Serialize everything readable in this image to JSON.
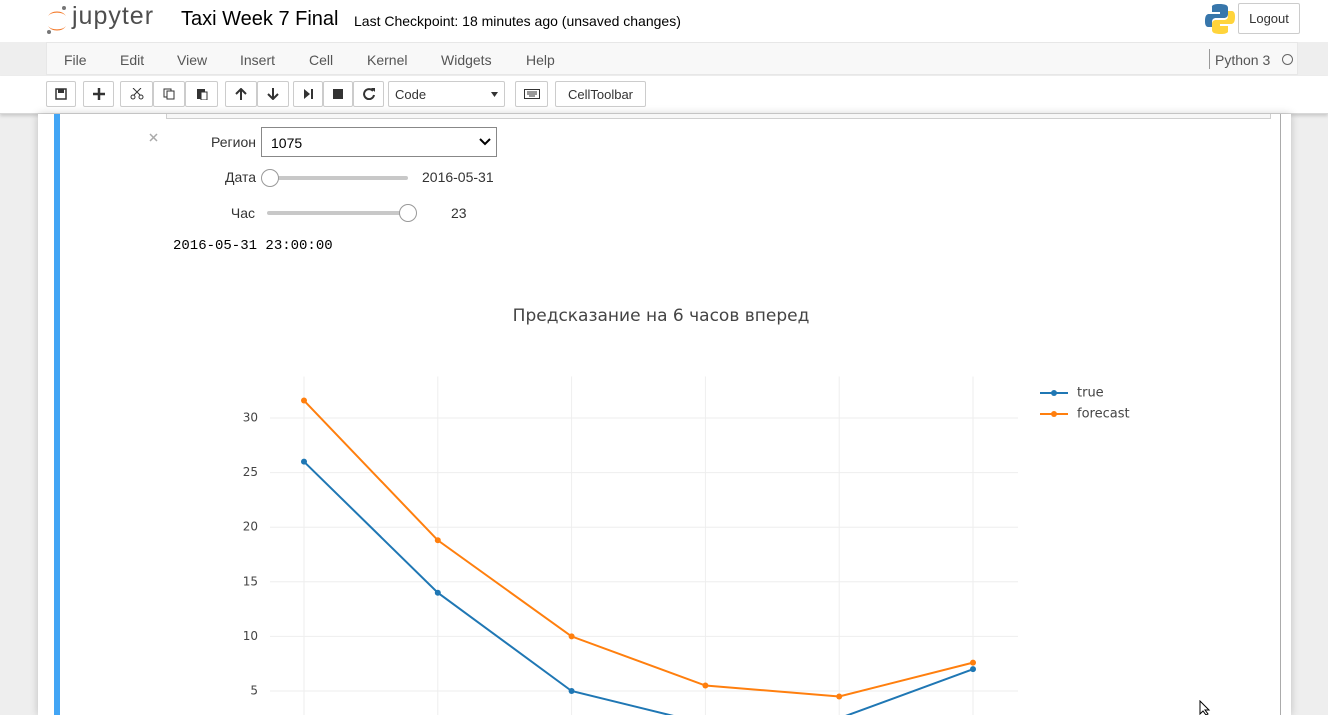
{
  "header": {
    "logo": "jupyter",
    "notebook_title": "Taxi Week 7 Final",
    "checkpoint": "Last Checkpoint: 18 minutes ago (unsaved changes)",
    "logout": "Logout"
  },
  "menu": {
    "items": [
      "File",
      "Edit",
      "View",
      "Insert",
      "Cell",
      "Kernel",
      "Widgets",
      "Help"
    ],
    "kernel": "Python 3"
  },
  "toolbar": {
    "cell_type": "Code",
    "cell_toolbar": "CellToolbar"
  },
  "widgets": {
    "region_label": "Регион",
    "region_value": "1075",
    "date_label": "Дата",
    "date_value": "2016-05-31",
    "hour_label": "Час",
    "hour_value": "23",
    "output": "2016-05-31 23:00:00"
  },
  "chart_data": {
    "type": "line",
    "title": "Предсказание на 6 часов вперед",
    "categories": [
      null,
      null,
      null,
      null,
      null,
      null
    ],
    "series": [
      {
        "name": "true",
        "color": "#1f77b4",
        "values": [
          26,
          14,
          5,
          2,
          2.5,
          7
        ]
      },
      {
        "name": "forecast",
        "color": "#ff7f0e",
        "values": [
          31.6,
          18.8,
          10,
          5.5,
          4.5,
          7.6
        ]
      }
    ],
    "ylim": [
      0,
      33.8
    ],
    "yticks": [
      5,
      10,
      15,
      20,
      25,
      30
    ],
    "grid": true
  }
}
